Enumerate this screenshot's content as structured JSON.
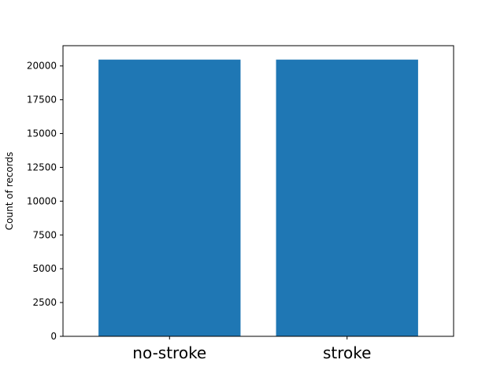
{
  "chart_data": {
    "type": "bar",
    "categories": [
      "no-stroke",
      "stroke"
    ],
    "values": [
      20470,
      20470
    ],
    "title": "",
    "xlabel": "",
    "ylabel": "Count of records",
    "ylim": [
      0,
      21500
    ],
    "yticks": [
      0,
      2500,
      5000,
      7500,
      10000,
      12500,
      15000,
      17500,
      20000
    ],
    "bar_color": "#1f77b4",
    "grid": false,
    "legend": "none"
  }
}
